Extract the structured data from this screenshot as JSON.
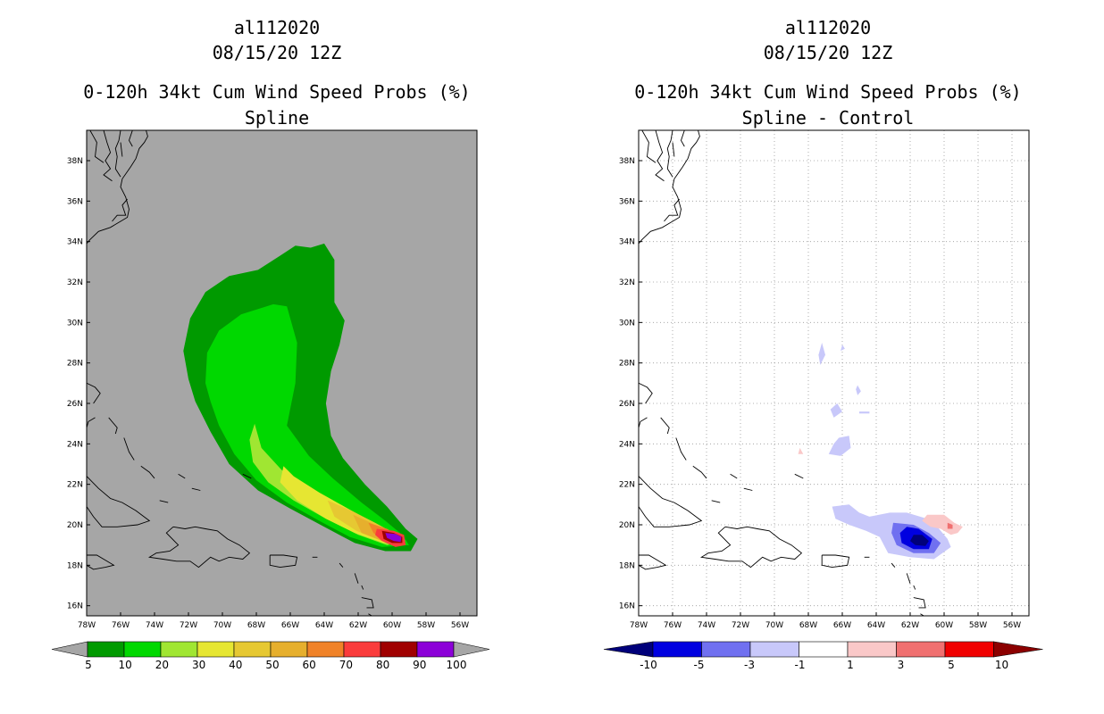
{
  "chart_data": [
    {
      "type": "heatmap",
      "storm": "al112020",
      "datetime": "08/15/20 12Z",
      "title": "0-120h 34kt Cum Wind Speed Probs (%)",
      "subtitle": "Spline",
      "xlim": [
        -78,
        -55
      ],
      "ylim": [
        15.5,
        39.5
      ],
      "x_ticks": [
        "78W",
        "76W",
        "74W",
        "72W",
        "70W",
        "68W",
        "66W",
        "64W",
        "62W",
        "60W",
        "58W",
        "56W"
      ],
      "y_ticks": [
        "16N",
        "18N",
        "20N",
        "22N",
        "24N",
        "26N",
        "28N",
        "30N",
        "32N",
        "34N",
        "36N",
        "38N"
      ],
      "grid": false,
      "background": "#a6a6a6",
      "colorbar": {
        "labels": [
          "5",
          "10",
          "20",
          "30",
          "40",
          "50",
          "60",
          "70",
          "80",
          "90",
          "100"
        ],
        "colors": [
          "#009a00",
          "#00d800",
          "#a0e632",
          "#e6e632",
          "#e6c832",
          "#e6af2d",
          "#f08228",
          "#fa3c3c",
          "#a00000",
          "#8c00d8"
        ],
        "end_color": "#a6a6a6"
      },
      "levels": [
        {
          "min": 5,
          "color": "#009a00",
          "polygon": [
            [
              -72.3,
              28.6
            ],
            [
              -71.9,
              30.2
            ],
            [
              -71.0,
              31.5
            ],
            [
              -69.6,
              32.3
            ],
            [
              -67.9,
              32.6
            ],
            [
              -66.6,
              33.3
            ],
            [
              -65.7,
              33.8
            ],
            [
              -64.8,
              33.7
            ],
            [
              -64.0,
              33.9
            ],
            [
              -63.4,
              33.1
            ],
            [
              -63.4,
              31.0
            ],
            [
              -62.8,
              30.1
            ],
            [
              -63.1,
              28.9
            ],
            [
              -63.6,
              27.6
            ],
            [
              -63.9,
              26.0
            ],
            [
              -63.6,
              24.4
            ],
            [
              -62.9,
              23.3
            ],
            [
              -61.6,
              22.0
            ],
            [
              -60.3,
              20.9
            ],
            [
              -59.2,
              19.8
            ],
            [
              -58.5,
              19.3
            ],
            [
              -58.9,
              18.7
            ],
            [
              -60.4,
              18.7
            ],
            [
              -62.2,
              19.1
            ],
            [
              -64.0,
              19.9
            ],
            [
              -66.0,
              20.8
            ],
            [
              -67.9,
              21.7
            ],
            [
              -69.6,
              23.0
            ],
            [
              -70.7,
              24.6
            ],
            [
              -71.6,
              26.1
            ],
            [
              -72.0,
              27.2
            ]
          ]
        },
        {
          "min": 10,
          "color": "#00d800",
          "polygon": [
            [
              -71.0,
              27.0
            ],
            [
              -70.9,
              28.5
            ],
            [
              -70.2,
              29.6
            ],
            [
              -68.9,
              30.4
            ],
            [
              -67.0,
              30.9
            ],
            [
              -66.2,
              30.8
            ],
            [
              -65.6,
              29.0
            ],
            [
              -65.7,
              27.0
            ],
            [
              -66.2,
              24.9
            ],
            [
              -64.9,
              23.4
            ],
            [
              -63.5,
              22.3
            ],
            [
              -61.8,
              21.1
            ],
            [
              -60.4,
              20.2
            ],
            [
              -59.4,
              19.5
            ],
            [
              -59.0,
              19.0
            ],
            [
              -60.6,
              18.9
            ],
            [
              -62.5,
              19.4
            ],
            [
              -64.3,
              20.2
            ],
            [
              -66.2,
              21.1
            ],
            [
              -68.0,
              22.2
            ],
            [
              -69.3,
              23.5
            ],
            [
              -70.2,
              24.9
            ],
            [
              -70.7,
              26.1
            ]
          ]
        },
        {
          "min": 20,
          "color": "#a0e632",
          "polygon": [
            [
              -68.1,
              25.0
            ],
            [
              -67.7,
              23.8
            ],
            [
              -66.5,
              22.7
            ],
            [
              -64.8,
              21.8
            ],
            [
              -63.0,
              20.9
            ],
            [
              -61.3,
              20.2
            ],
            [
              -59.9,
              19.6
            ],
            [
              -59.2,
              19.2
            ],
            [
              -60.3,
              19.0
            ],
            [
              -62.0,
              19.5
            ],
            [
              -63.9,
              20.3
            ],
            [
              -65.8,
              21.2
            ],
            [
              -67.3,
              22.1
            ],
            [
              -68.2,
              23.1
            ],
            [
              -68.4,
              24.2
            ]
          ]
        },
        {
          "min": 30,
          "color": "#e6e632",
          "polygon": [
            [
              -66.4,
              22.9
            ],
            [
              -65.8,
              22.4
            ],
            [
              -64.3,
              21.6
            ],
            [
              -62.6,
              20.8
            ],
            [
              -61.1,
              20.1
            ],
            [
              -59.9,
              19.6
            ],
            [
              -59.3,
              19.2
            ],
            [
              -60.5,
              19.1
            ],
            [
              -62.2,
              19.6
            ],
            [
              -63.9,
              20.3
            ],
            [
              -65.6,
              21.2
            ],
            [
              -66.6,
              22.1
            ]
          ]
        },
        {
          "min": 40,
          "color": "#e6c832",
          "polygon": [
            [
              -63.8,
              21.2
            ],
            [
              -62.4,
              20.7
            ],
            [
              -61.0,
              20.1
            ],
            [
              -59.9,
              19.6
            ],
            [
              -59.4,
              19.3
            ],
            [
              -60.6,
              19.2
            ],
            [
              -62.1,
              19.7
            ],
            [
              -63.4,
              20.4
            ]
          ]
        },
        {
          "min": 50,
          "color": "#e6af2d",
          "polygon": [
            [
              -62.3,
              20.5
            ],
            [
              -61.0,
              20.0
            ],
            [
              -59.9,
              19.6
            ],
            [
              -59.5,
              19.3
            ],
            [
              -60.6,
              19.2
            ],
            [
              -61.8,
              19.6
            ]
          ]
        },
        {
          "min": 60,
          "color": "#f08228",
          "polygon": [
            [
              -61.4,
              20.1
            ],
            [
              -60.3,
              19.8
            ],
            [
              -59.5,
              19.4
            ],
            [
              -59.6,
              19.2
            ],
            [
              -60.6,
              19.3
            ],
            [
              -61.1,
              19.6
            ]
          ]
        },
        {
          "min": 70,
          "color": "#fa3c3c",
          "polygon": [
            [
              -60.9,
              19.8
            ],
            [
              -59.9,
              19.7
            ],
            [
              -59.3,
              19.5
            ],
            [
              -59.2,
              19.0
            ],
            [
              -59.8,
              18.9
            ],
            [
              -60.6,
              19.2
            ],
            [
              -61.0,
              19.5
            ]
          ]
        },
        {
          "min": 80,
          "color": "#a00000",
          "polygon": [
            [
              -60.6,
              19.7
            ],
            [
              -59.9,
              19.6
            ],
            [
              -59.4,
              19.4
            ],
            [
              -59.4,
              19.1
            ],
            [
              -60.0,
              19.1
            ],
            [
              -60.5,
              19.3
            ]
          ]
        },
        {
          "min": 90,
          "color": "#8c00d8",
          "polygon": [
            [
              -60.4,
              19.6
            ],
            [
              -59.8,
              19.55
            ],
            [
              -59.45,
              19.4
            ],
            [
              -59.5,
              19.15
            ],
            [
              -59.9,
              19.2
            ],
            [
              -60.3,
              19.35
            ]
          ]
        }
      ]
    },
    {
      "type": "heatmap",
      "storm": "al112020",
      "datetime": "08/15/20 12Z",
      "title": "0-120h 34kt Cum Wind Speed Probs (%)",
      "subtitle": "Spline - Control",
      "xlim": [
        -78,
        -55
      ],
      "ylim": [
        15.5,
        39.5
      ],
      "x_ticks": [
        "78W",
        "76W",
        "74W",
        "72W",
        "70W",
        "68W",
        "66W",
        "64W",
        "62W",
        "60W",
        "58W",
        "56W"
      ],
      "y_ticks": [
        "16N",
        "18N",
        "20N",
        "22N",
        "24N",
        "26N",
        "28N",
        "30N",
        "32N",
        "34N",
        "36N",
        "38N"
      ],
      "grid": true,
      "background": "#ffffff",
      "colorbar": {
        "labels": [
          "-10",
          "-5",
          "-3",
          "-1",
          "1",
          "3",
          "5",
          "10"
        ],
        "colors": [
          "#0000e0",
          "#7070f0",
          "#c8c8fa",
          "#ffffff",
          "#fac8c8",
          "#f07070",
          "#f00000"
        ],
        "start_color": "#00007a",
        "end_color": "#8c0000"
      },
      "levels": [
        {
          "range": "-3 to -1",
          "color": "#c8c8fa",
          "polygon": [
            [
              -66.6,
              20.9
            ],
            [
              -65.6,
              21.0
            ],
            [
              -65.0,
              20.6
            ],
            [
              -64.4,
              20.4
            ],
            [
              -63.2,
              20.6
            ],
            [
              -62.2,
              20.6
            ],
            [
              -61.0,
              20.3
            ],
            [
              -60.3,
              19.8
            ],
            [
              -59.8,
              19.3
            ],
            [
              -59.6,
              18.9
            ],
            [
              -60.6,
              18.3
            ],
            [
              -62.0,
              18.4
            ],
            [
              -63.3,
              18.6
            ],
            [
              -63.8,
              19.4
            ],
            [
              -64.6,
              19.7
            ],
            [
              -65.6,
              20.0
            ],
            [
              -66.4,
              20.3
            ]
          ]
        },
        {
          "range": "-5 to -3",
          "color": "#7070f0",
          "polygon": [
            [
              -63.0,
              20.1
            ],
            [
              -61.8,
              20.0
            ],
            [
              -60.9,
              19.6
            ],
            [
              -60.2,
              19.1
            ],
            [
              -60.6,
              18.6
            ],
            [
              -61.8,
              18.6
            ],
            [
              -62.8,
              19.0
            ],
            [
              -63.1,
              19.6
            ]
          ]
        },
        {
          "range": "-10 to -5",
          "color": "#0000e0",
          "polygon": [
            [
              -62.2,
              19.9
            ],
            [
              -61.5,
              19.8
            ],
            [
              -60.7,
              19.3
            ],
            [
              -60.9,
              18.8
            ],
            [
              -61.8,
              18.8
            ],
            [
              -62.5,
              19.1
            ],
            [
              -62.6,
              19.6
            ]
          ]
        },
        {
          "range": "< -10",
          "color": "#00007a",
          "polygon": [
            [
              -61.8,
              19.5
            ],
            [
              -61.3,
              19.5
            ],
            [
              -60.9,
              19.2
            ],
            [
              -61.1,
              18.95
            ],
            [
              -61.7,
              19.0
            ],
            [
              -62.0,
              19.2
            ]
          ]
        },
        {
          "range": "1 to 3",
          "color": "#fac8c8",
          "polygon": [
            [
              -61.0,
              20.5
            ],
            [
              -60.0,
              20.5
            ],
            [
              -59.4,
              20.1
            ],
            [
              -58.9,
              19.9
            ],
            [
              -59.2,
              19.6
            ],
            [
              -59.6,
              19.5
            ],
            [
              -60.2,
              19.8
            ],
            [
              -60.8,
              19.9
            ],
            [
              -61.3,
              20.2
            ]
          ]
        },
        {
          "range": "3 to 5",
          "color": "#f07070",
          "polygon": [
            [
              -59.8,
              20.1
            ],
            [
              -59.5,
              20.0
            ],
            [
              -59.5,
              19.8
            ],
            [
              -59.8,
              19.8
            ]
          ]
        },
        {
          "range": "-3 to -1",
          "color": "#c8c8fa",
          "polygon": [
            [
              -66.2,
              24.3
            ],
            [
              -65.6,
              24.4
            ],
            [
              -65.5,
              23.8
            ],
            [
              -66.1,
              23.4
            ],
            [
              -66.8,
              23.5
            ],
            [
              -66.5,
              24.0
            ]
          ]
        },
        {
          "range": "-3 to -1",
          "color": "#c8c8fa",
          "polygon": [
            [
              -67.2,
              29.0
            ],
            [
              -67.0,
              28.4
            ],
            [
              -67.3,
              27.9
            ],
            [
              -67.4,
              28.4
            ]
          ]
        },
        {
          "range": "-3 to -1",
          "color": "#c8c8fa",
          "polygon": [
            [
              -66.3,
              26.0
            ],
            [
              -66.0,
              25.6
            ],
            [
              -66.5,
              25.3
            ],
            [
              -66.7,
              25.7
            ]
          ]
        },
        {
          "range": "-3 to -1",
          "color": "#c8c8fa",
          "polygon": [
            [
              -66.0,
              28.9
            ],
            [
              -65.85,
              28.7
            ],
            [
              -66.1,
              28.6
            ]
          ]
        },
        {
          "range": "-3 to -1",
          "color": "#c8c8fa",
          "polygon": [
            [
              -65.1,
              26.9
            ],
            [
              -64.9,
              26.6
            ],
            [
              -65.1,
              26.4
            ],
            [
              -65.2,
              26.7
            ]
          ]
        },
        {
          "range": "-3 to -1",
          "color": "#c8c8fa",
          "polygon": [
            [
              -65.0,
              25.6
            ],
            [
              -64.4,
              25.6
            ],
            [
              -64.4,
              25.5
            ],
            [
              -65.0,
              25.5
            ]
          ]
        },
        {
          "range": "1 to 3",
          "color": "#fac8c8",
          "polygon": [
            [
              -68.5,
              23.8
            ],
            [
              -68.3,
              23.5
            ],
            [
              -68.6,
              23.5
            ]
          ]
        }
      ]
    }
  ]
}
